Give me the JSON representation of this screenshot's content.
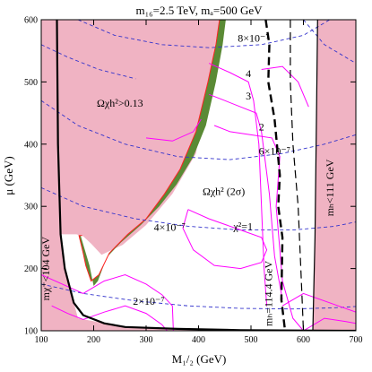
{
  "chart_data": {
    "type": "contour",
    "title": "m₁₆=2.5 TeV,  mₐ=500 GeV",
    "xlabel": "M₁/₂  (GeV)",
    "ylabel": "μ  (GeV)",
    "xlim": [
      100,
      700
    ],
    "ylim": [
      100,
      600
    ],
    "xticks": [
      100,
      200,
      300,
      400,
      500,
      600,
      700
    ],
    "yticks": [
      100,
      200,
      300,
      400,
      500,
      600
    ],
    "grid": false,
    "colors": {
      "excluded_region": "#f0b3c3",
      "relic_band": "#5a8a35",
      "chi2_contours": "#ff00ff",
      "mu_e_gamma_contours": "#3333cc",
      "boundary_lines": "#000000",
      "relic_edge": "#ff2222"
    },
    "excluded_regions": [
      {
        "label": "Ωχh²>0.13",
        "polygon": [
          [
            115,
            600
          ],
          [
            440,
            600
          ],
          [
            395,
            385
          ],
          [
            350,
            320
          ],
          [
            300,
            270
          ],
          [
            255,
            238
          ],
          [
            215,
            222
          ],
          [
            195,
            240
          ],
          [
            180,
            252
          ],
          [
            167,
            255
          ],
          [
            115,
            255
          ]
        ]
      },
      {
        "label": "mχ⁺<104 GeV",
        "polygon": [
          [
            100,
            600
          ],
          [
            130,
            600
          ],
          [
            132,
            400
          ],
          [
            137,
            255
          ],
          [
            145,
            200
          ],
          [
            170,
            120
          ],
          [
            260,
            106
          ],
          [
            480,
            101
          ],
          [
            700,
            100
          ],
          [
            100,
            100
          ]
        ]
      },
      {
        "label": "mₕ<111 GeV",
        "polygon": [
          [
            627,
            600
          ],
          [
            700,
            600
          ],
          [
            700,
            100
          ],
          [
            618,
            100
          ],
          [
            622,
            250
          ],
          [
            625,
            450
          ]
        ]
      }
    ],
    "relic_band": {
      "label": "Ωχh² (2σ)",
      "outer": [
        [
          440,
          600
        ],
        [
          433,
          560
        ],
        [
          418,
          500
        ],
        [
          395,
          420
        ],
        [
          365,
          360
        ],
        [
          335,
          320
        ],
        [
          300,
          280
        ],
        [
          265,
          255
        ],
        [
          230,
          225
        ],
        [
          210,
          190
        ],
        [
          195,
          180
        ],
        [
          185,
          205
        ],
        [
          180,
          225
        ],
        [
          172,
          253
        ],
        [
          178,
          253
        ]
      ],
      "inner": [
        [
          452,
          600
        ],
        [
          446,
          560
        ],
        [
          433,
          500
        ],
        [
          414,
          430
        ],
        [
          390,
          380
        ],
        [
          358,
          335
        ],
        [
          325,
          300
        ],
        [
          290,
          270
        ],
        [
          252,
          242
        ],
        [
          225,
          218
        ],
        [
          208,
          180
        ],
        [
          200,
          172
        ],
        [
          192,
          205
        ],
        [
          185,
          225
        ],
        [
          175,
          253
        ]
      ]
    },
    "chi2_contours": [
      {
        "label": "χ²=1",
        "points": [
          [
            380,
            295
          ],
          [
            420,
            280
          ],
          [
            470,
            265
          ],
          [
            520,
            250
          ],
          [
            530,
            230
          ],
          [
            520,
            210
          ],
          [
            480,
            200
          ],
          [
            430,
            205
          ],
          [
            390,
            230
          ],
          [
            370,
            265
          ],
          [
            380,
            295
          ]
        ]
      },
      {
        "label": "2",
        "points": [
          [
            430,
            430
          ],
          [
            460,
            420
          ],
          [
            500,
            415
          ],
          [
            540,
            410
          ],
          [
            555,
            380
          ],
          [
            548,
            300
          ],
          [
            560,
            180
          ],
          [
            580,
            120
          ],
          [
            600,
            100
          ]
        ]
      },
      {
        "label": "3",
        "points": [
          [
            420,
            480
          ],
          [
            450,
            470
          ],
          [
            480,
            460
          ],
          [
            510,
            450
          ],
          [
            520,
            420
          ],
          [
            535,
            320
          ],
          [
            545,
            220
          ],
          [
            560,
            150
          ]
        ]
      },
      {
        "label": "4",
        "points": [
          [
            420,
            530
          ],
          [
            460,
            515
          ],
          [
            495,
            500
          ],
          [
            505,
            470
          ],
          [
            515,
            400
          ],
          [
            520,
            300
          ],
          [
            525,
            200
          ],
          [
            530,
            140
          ]
        ]
      },
      {
        "label": "",
        "points": [
          [
            100,
            190
          ],
          [
            140,
            175
          ],
          [
            180,
            160
          ],
          [
            220,
            180
          ],
          [
            260,
            190
          ],
          [
            300,
            175
          ],
          [
            330,
            158
          ],
          [
            350,
            140
          ],
          [
            352,
            100
          ]
        ]
      },
      {
        "label": "",
        "points": [
          [
            120,
            140
          ],
          [
            150,
            128
          ],
          [
            180,
            118
          ],
          [
            220,
            130
          ],
          [
            260,
            140
          ],
          [
            300,
            128
          ],
          [
            330,
            110
          ],
          [
            340,
            100
          ]
        ]
      },
      {
        "label": "",
        "points": [
          [
            520,
            520
          ],
          [
            560,
            525
          ],
          [
            590,
            500
          ],
          [
            610,
            460
          ]
        ]
      },
      {
        "label": "",
        "points": [
          [
            560,
            140
          ],
          [
            600,
            160
          ],
          [
            650,
            145
          ],
          [
            700,
            130
          ]
        ]
      },
      {
        "label": "",
        "points": [
          [
            600,
            100
          ],
          [
            640,
            120
          ],
          [
            680,
            115
          ],
          [
            700,
            112
          ]
        ]
      },
      {
        "label": "",
        "points": [
          [
            300,
            410
          ],
          [
            350,
            405
          ],
          [
            390,
            420
          ],
          [
            405,
            440
          ]
        ]
      }
    ],
    "mu_e_gamma_contours": [
      {
        "label": "8×10⁻⁷",
        "points": [
          [
            170,
            600
          ],
          [
            240,
            575
          ],
          [
            330,
            560
          ],
          [
            420,
            555
          ],
          [
            520,
            560
          ],
          [
            600,
            575
          ],
          [
            650,
            600
          ]
        ]
      },
      {
        "label": "6×10⁻⁷",
        "points": [
          [
            100,
            470
          ],
          [
            170,
            430
          ],
          [
            260,
            400
          ],
          [
            360,
            380
          ],
          [
            460,
            375
          ],
          [
            560,
            385
          ],
          [
            640,
            400
          ],
          [
            700,
            415
          ]
        ]
      },
      {
        "label": "4×10⁻⁷",
        "points": [
          [
            100,
            330
          ],
          [
            180,
            300
          ],
          [
            280,
            280
          ],
          [
            380,
            268
          ],
          [
            480,
            262
          ],
          [
            580,
            262
          ],
          [
            660,
            268
          ],
          [
            700,
            275
          ]
        ]
      },
      {
        "label": "2×10⁻⁷",
        "points": [
          [
            100,
            175
          ],
          [
            180,
            160
          ],
          [
            280,
            148
          ],
          [
            380,
            140
          ],
          [
            480,
            136
          ],
          [
            580,
            135
          ],
          [
            660,
            137
          ],
          [
            700,
            139
          ]
        ]
      },
      {
        "label": "",
        "points": [
          [
            100,
            560
          ],
          [
            150,
            540
          ],
          [
            210,
            520
          ],
          [
            280,
            505
          ]
        ]
      },
      {
        "label": "",
        "points": [
          [
            600,
            600
          ],
          [
            640,
            560
          ],
          [
            690,
            535
          ],
          [
            700,
            530
          ]
        ]
      }
    ],
    "higgs_dashed_lines": [
      {
        "label": "mₕ=114.4 GeV",
        "points": [
          [
            528,
            600
          ],
          [
            535,
            560
          ],
          [
            533,
            500
          ],
          [
            545,
            440
          ],
          [
            555,
            350
          ],
          [
            552,
            300
          ],
          [
            560,
            250
          ],
          [
            558,
            150
          ],
          [
            565,
            100
          ]
        ],
        "width": 2.4
      },
      {
        "label": "",
        "points": [
          [
            575,
            600
          ],
          [
            575,
            500
          ],
          [
            580,
            400
          ],
          [
            590,
            300
          ],
          [
            595,
            200
          ],
          [
            600,
            100
          ]
        ],
        "width": 1.2
      }
    ],
    "solid_boundaries": [
      {
        "points": [
          [
            130,
            600
          ],
          [
            132,
            400
          ],
          [
            137,
            255
          ],
          [
            145,
            200
          ],
          [
            162,
            145
          ],
          [
            180,
            125
          ],
          [
            220,
            112
          ],
          [
            260,
            106
          ],
          [
            360,
            103
          ],
          [
            480,
            101
          ],
          [
            700,
            100
          ]
        ],
        "width": 2.2
      },
      {
        "points": [
          [
            627,
            600
          ],
          [
            625,
            450
          ],
          [
            622,
            250
          ],
          [
            618,
            100
          ]
        ],
        "width": 1.2
      }
    ],
    "annotations": [
      {
        "text": "Ωχh²>0.13",
        "x": 250,
        "y": 460
      },
      {
        "text": "Ωχh² (2σ)",
        "x": 448,
        "y": 318
      },
      {
        "text": "8×10⁻⁷",
        "x": 505,
        "y": 565
      },
      {
        "text": "4",
        "x": 495,
        "y": 508
      },
      {
        "text": "3",
        "x": 495,
        "y": 472
      },
      {
        "text": "2",
        "x": 520,
        "y": 422
      },
      {
        "text": "6×10⁻⁷",
        "x": 545,
        "y": 383
      },
      {
        "text": "χ²=1",
        "x": 485,
        "y": 262
      },
      {
        "text": "4×10⁻⁷",
        "x": 345,
        "y": 261
      },
      {
        "text": "2×10⁻⁷",
        "x": 305,
        "y": 142
      }
    ],
    "rotated_annotations": [
      {
        "text": "mχ⁺<104 GeV",
        "x": 115,
        "y": 200
      },
      {
        "text": "mₕ=114.4 GeV",
        "x": 540,
        "y": 160
      },
      {
        "text": "mₕ<111 GeV",
        "x": 657,
        "y": 330
      }
    ]
  }
}
